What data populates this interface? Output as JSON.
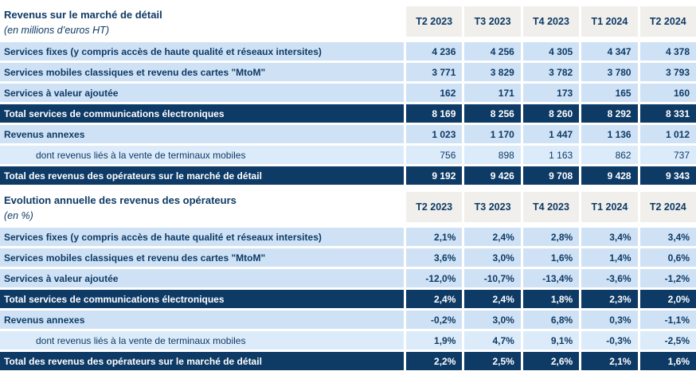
{
  "colors": {
    "navy": "#0e3a66",
    "light_blue_row": "#cfe2f5",
    "lighter_blue_subrow": "#dcebfa",
    "header_gray": "#f1efeb",
    "total_row_text": "#ffffff"
  },
  "tables": [
    {
      "title": "Revenus sur le marché de détail",
      "subtitle": "(en millions d’euros HT)",
      "columns": [
        "T2 2023",
        "T3 2023",
        "T4 2023",
        "T1 2024",
        "T2 2024"
      ],
      "rows": [
        {
          "label": "Services fixes (y compris accès de haute qualité et réseaux intersites)",
          "type": "data",
          "values": [
            "4 236",
            "4 256",
            "4 305",
            "4 347",
            "4 378"
          ]
        },
        {
          "label": "Services mobiles classiques et revenu des cartes \"MtoM\"",
          "type": "data",
          "values": [
            "3 771",
            "3 829",
            "3 782",
            "3 780",
            "3 793"
          ]
        },
        {
          "label": "Services à valeur ajoutée",
          "type": "data",
          "values": [
            "162",
            "171",
            "173",
            "165",
            "160"
          ]
        },
        {
          "label": "Total services de communications électroniques",
          "type": "total",
          "values": [
            "8 169",
            "8 256",
            "8 260",
            "8 292",
            "8 331"
          ]
        },
        {
          "label": "Revenus annexes",
          "type": "data",
          "values": [
            "1 023",
            "1 170",
            "1 447",
            "1 136",
            "1 012"
          ]
        },
        {
          "label": "dont revenus liés à la vente de terminaux mobiles",
          "type": "sub",
          "values_bold": false,
          "values": [
            "756",
            "898",
            "1 163",
            "862",
            "737"
          ]
        },
        {
          "label": "Total des revenus des opérateurs sur le marché de détail",
          "type": "total",
          "values": [
            "9 192",
            "9 426",
            "9 708",
            "9 428",
            "9 343"
          ]
        }
      ]
    },
    {
      "title": "Evolution annuelle des revenus des opérateurs",
      "subtitle": "(en %)",
      "columns": [
        "T2 2023",
        "T3 2023",
        "T4 2023",
        "T1 2024",
        "T2 2024"
      ],
      "rows": [
        {
          "label": "Services fixes (y compris accès de haute qualité et réseaux intersites)",
          "type": "data",
          "values": [
            "2,1%",
            "2,4%",
            "2,8%",
            "3,4%",
            "3,4%"
          ]
        },
        {
          "label": "Services mobiles classiques et revenu des cartes \"MtoM\"",
          "type": "data",
          "values": [
            "3,6%",
            "3,0%",
            "1,6%",
            "1,4%",
            "0,6%"
          ]
        },
        {
          "label": "Services à valeur ajoutée",
          "type": "data",
          "values": [
            "-12,0%",
            "-10,7%",
            "-13,4%",
            "-3,6%",
            "-1,2%"
          ]
        },
        {
          "label": "Total services de communications électroniques",
          "type": "total",
          "values": [
            "2,4%",
            "2,4%",
            "1,8%",
            "2,3%",
            "2,0%"
          ]
        },
        {
          "label": "Revenus annexes",
          "type": "data",
          "values": [
            "-0,2%",
            "3,0%",
            "6,8%",
            "0,3%",
            "-1,1%"
          ]
        },
        {
          "label": "dont revenus liés à la vente de terminaux mobiles",
          "type": "sub",
          "values_bold": true,
          "values": [
            "1,9%",
            "4,7%",
            "9,1%",
            "-0,3%",
            "-2,5%"
          ]
        },
        {
          "label": "Total des revenus des opérateurs sur le marché de détail",
          "type": "total",
          "values": [
            "2,2%",
            "2,5%",
            "2,6%",
            "2,1%",
            "1,6%"
          ]
        }
      ]
    }
  ]
}
